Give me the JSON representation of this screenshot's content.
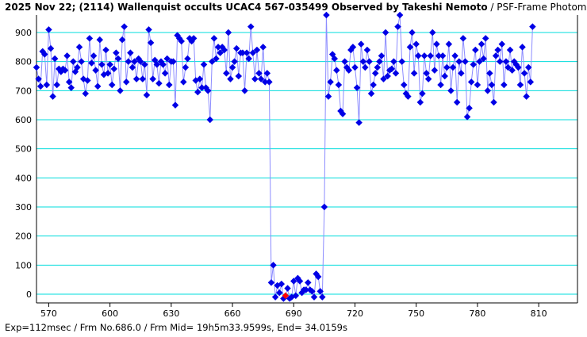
{
  "header": {
    "title_bold": "2025 Nov 22; (2114) Wallenquist occults UCAC4 567-035499 Observed by Takeshi Nemoto",
    "title_suffix": " / PSF-Frame Photometry /"
  },
  "footer": {
    "text": "Exp=112msec / Frm No.686.0 / Frm Mid= 19h5m33.9599s,  End= 34.0159s"
  },
  "colors": {
    "line": "#8c8cff",
    "point": "#0000e6",
    "highlight": "#ff0000",
    "grid": "#00dcdc",
    "axis": "#000000"
  },
  "chart_data": {
    "type": "line",
    "title": "2025 Nov 22; (2114) Wallenquist occults UCAC4 567-035499 Observed by Takeshi Nemoto / PSF-Frame Photometry /",
    "xlabel": "",
    "ylabel": "",
    "xlim": [
      564,
      829
    ],
    "ylim": [
      -30,
      960
    ],
    "x_ticks": [
      570,
      600,
      630,
      660,
      690,
      720,
      750,
      780,
      810
    ],
    "y_ticks": [
      0,
      100,
      200,
      300,
      400,
      500,
      600,
      700,
      800,
      900
    ],
    "grid": "horizontal",
    "highlight_x": 686,
    "series": [
      {
        "x_start": 564,
        "x_step": 1,
        "values": [
          780,
          740,
          715,
          835,
          825,
          720,
          910,
          845,
          680,
          810,
          720,
          775,
          765,
          775,
          770,
          820,
          730,
          710,
          800,
          765,
          780,
          850,
          800,
          740,
          690,
          735,
          880,
          795,
          820,
          770,
          715,
          875,
          790,
          755,
          840,
          760,
          790,
          720,
          775,
          830,
          810,
          700,
          875,
          920,
          730,
          800,
          830,
          780,
          800,
          740,
          810,
          800,
          740,
          790,
          685,
          910,
          865,
          740,
          805,
          790,
          725,
          800,
          790,
          760,
          810,
          720,
          800,
          800,
          650,
          890,
          880,
          870,
          730,
          780,
          810,
          880,
          870,
          880,
          735,
          695,
          740,
          710,
          790,
          710,
          700,
          600,
          800,
          880,
          810,
          850,
          830,
          850,
          840,
          760,
          900,
          740,
          780,
          800,
          845,
          750,
          830,
          830,
          700,
          830,
          810,
          920,
          830,
          740,
          840,
          760,
          740,
          850,
          730,
          760,
          730,
          40,
          100,
          -10,
          30,
          5,
          35,
          -15,
          -5,
          20,
          -15,
          -10,
          45,
          -5,
          55,
          45,
          5,
          15,
          15,
          40,
          15,
          10,
          -10,
          70,
          60,
          10,
          -10,
          300,
          960,
          680,
          730,
          825,
          810,
          770,
          720,
          630,
          620,
          800,
          780,
          770,
          840,
          850,
          780,
          710,
          590,
          860,
          800,
          780,
          840,
          800,
          690,
          720,
          760,
          780,
          800,
          820,
          740,
          900,
          750,
          770,
          775,
          800,
          760,
          920,
          960,
          800,
          720,
          690,
          680,
          850,
          900,
          760,
          860,
          820,
          660,
          690,
          820,
          760,
          740,
          820,
          900,
          770,
          860,
          820,
          720,
          820,
          750,
          780,
          860,
          700,
          780,
          820,
          660,
          800,
          760,
          880,
          800,
          610,
          640,
          730,
          790,
          840,
          720,
          800,
          860,
          810,
          880,
          700,
          760,
          720,
          660,
          820,
          840,
          800,
          860,
          720,
          800,
          780,
          840,
          770,
          800,
          790,
          780,
          720,
          850,
          760,
          680,
          780,
          730,
          920
        ]
      }
    ]
  }
}
